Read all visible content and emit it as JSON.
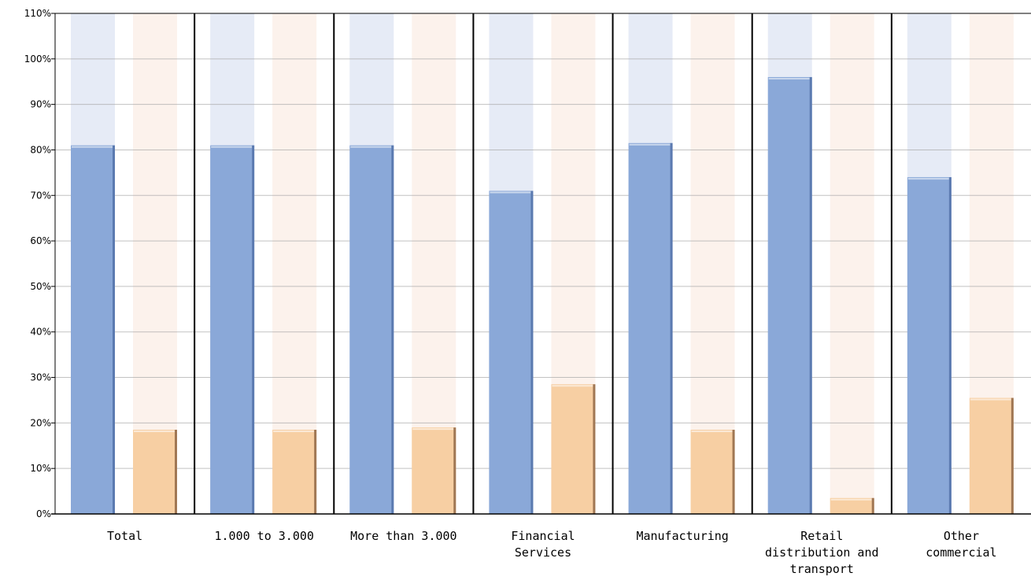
{
  "chart_data": {
    "type": "bar",
    "title": "",
    "xlabel": "",
    "ylabel": "",
    "ylim": [
      0,
      110
    ],
    "y_ticks": [
      "0%",
      "10%",
      "20%",
      "30%",
      "40%",
      "50%",
      "60%",
      "70%",
      "80%",
      "90%",
      "100%",
      "110%"
    ],
    "y_tick_values": [
      0,
      10,
      20,
      30,
      40,
      50,
      60,
      70,
      80,
      90,
      100,
      110
    ],
    "categories": [
      [
        "Total"
      ],
      [
        "1.000 to 3.000"
      ],
      [
        "More than 3.000"
      ],
      [
        "Financial",
        "Services"
      ],
      [
        "Manufacturing"
      ],
      [
        "Retail",
        "distribution and",
        "transport"
      ],
      [
        "Other",
        "commercial"
      ]
    ],
    "background_bar_max": 110,
    "grid": true,
    "legend": "none",
    "series": [
      {
        "values": [
          81,
          81,
          81,
          71,
          81.5,
          96,
          74
        ],
        "color": "#8aa8d8",
        "background_color": "#e6ebf6",
        "edge_color": "#4f6ea6"
      },
      {
        "values": [
          18.5,
          18.5,
          19,
          28.5,
          18.5,
          3.5,
          25.5
        ],
        "color": "#f7cfa3",
        "background_color": "#fcf2ec",
        "edge_color": "#8a6040"
      }
    ]
  }
}
